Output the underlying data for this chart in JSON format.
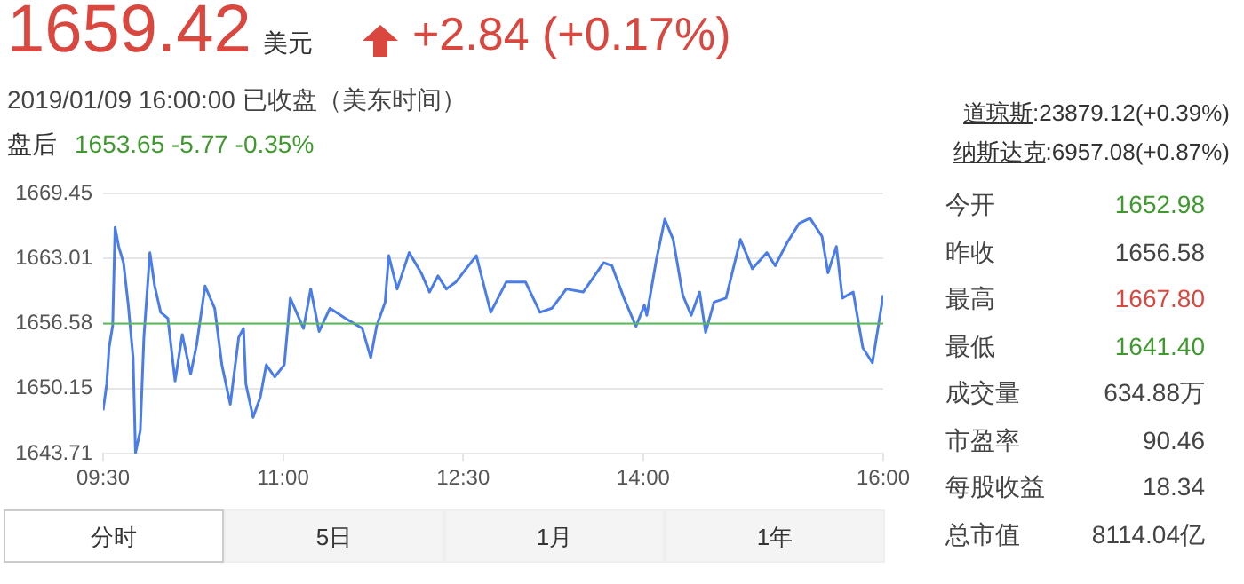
{
  "chart_data": {
    "type": "line",
    "title": "1659.42",
    "annotations": [
      "美元",
      "+2.84 (+0.17%)",
      "2019/01/09 16:00:00 已收盘（美东时间）",
      "盘后",
      "1653.65 -5.77 -0.35%",
      "道琼斯:23879.12(+0.39%)",
      "纳斯达克:6957.08(+0.87%)",
      "今开",
      "1652.98",
      "昨收",
      "1656.58",
      "最高",
      "1667.80",
      "最低",
      "1641.40",
      "成交量",
      "634.88万",
      "市盈率",
      "90.46",
      "每股收益",
      "18.34",
      "总市值",
      "8114.04亿",
      "分时",
      "5日",
      "1月",
      "1年"
    ],
    "x": [
      9.5,
      9.53,
      9.55,
      9.58,
      9.6,
      9.63,
      9.67,
      9.71,
      9.75,
      9.77,
      9.81,
      9.84,
      9.89,
      9.93,
      9.98,
      10.04,
      10.1,
      10.16,
      10.23,
      10.28,
      10.35,
      10.43,
      10.49,
      10.56,
      10.63,
      10.67,
      10.69,
      10.75,
      10.81,
      10.86,
      10.93,
      11.01,
      11.06,
      11.17,
      11.23,
      11.3,
      11.39,
      11.52,
      11.66,
      11.73,
      11.78,
      11.85,
      11.88,
      11.95,
      12.05,
      12.15,
      12.22,
      12.29,
      12.36,
      12.44,
      12.61,
      12.73,
      12.86,
      13.02,
      13.14,
      13.24,
      13.36,
      13.5,
      13.67,
      13.74,
      13.84,
      13.94,
      14.01,
      14.03,
      14.11,
      14.18,
      14.25,
      14.33,
      14.4,
      14.47,
      14.52,
      14.59,
      14.69,
      14.81,
      14.91,
      15.03,
      15.1,
      15.2,
      15.3,
      15.39,
      15.49,
      15.54,
      15.61,
      15.66,
      15.75,
      15.83,
      15.91,
      15.96,
      16.0
    ],
    "series": [
      {
        "color": "#4a7de8",
        "values": [
          1648.0,
          1650.6,
          1654.2,
          1656.4,
          1666.1,
          1664.2,
          1662.6,
          1658.4,
          1653.2,
          1643.8,
          1646.0,
          1655.2,
          1663.6,
          1660.3,
          1657.7,
          1657.1,
          1650.9,
          1655.5,
          1651.6,
          1654.5,
          1660.3,
          1658.1,
          1652.5,
          1648.6,
          1655.2,
          1656.1,
          1650.6,
          1647.3,
          1649.3,
          1652.5,
          1651.3,
          1652.5,
          1659.1,
          1656.1,
          1660.0,
          1655.8,
          1658.1,
          1657.1,
          1656.1,
          1653.2,
          1656.4,
          1658.7,
          1663.3,
          1660.0,
          1663.6,
          1661.6,
          1659.7,
          1661.3,
          1660.0,
          1660.7,
          1663.3,
          1657.7,
          1660.7,
          1660.7,
          1657.7,
          1658.1,
          1660.0,
          1659.7,
          1662.6,
          1662.3,
          1659.1,
          1656.3,
          1658.4,
          1657.4,
          1662.9,
          1666.9,
          1664.9,
          1659.4,
          1657.4,
          1659.7,
          1655.7,
          1658.7,
          1659.1,
          1664.9,
          1662.0,
          1663.6,
          1662.3,
          1664.6,
          1666.5,
          1667.0,
          1665.2,
          1661.6,
          1664.2,
          1659.1,
          1659.7,
          1654.2,
          1652.7,
          1656.4,
          1659.4
        ]
      }
    ],
    "xlim": [
      9.5,
      16.0
    ],
    "xticks": [
      {
        "value": 9.5,
        "label": "09:30"
      },
      {
        "value": 11,
        "label": "11:00"
      },
      {
        "value": 12.5,
        "label": "12:30"
      },
      {
        "value": 14,
        "label": "14:00"
      },
      {
        "value": 16,
        "label": "16:00"
      }
    ],
    "ylim": [
      1643.71,
      1669.45
    ],
    "yticks": [
      1643.71,
      1650.15,
      1656.58,
      1663.01,
      1669.45
    ],
    "ref_lines": [
      {
        "axis": "y",
        "value": 1656.58,
        "color": "#5cb85c"
      }
    ],
    "grid": "y",
    "legend": false,
    "marker": "none",
    "line_style": "solid"
  }
}
